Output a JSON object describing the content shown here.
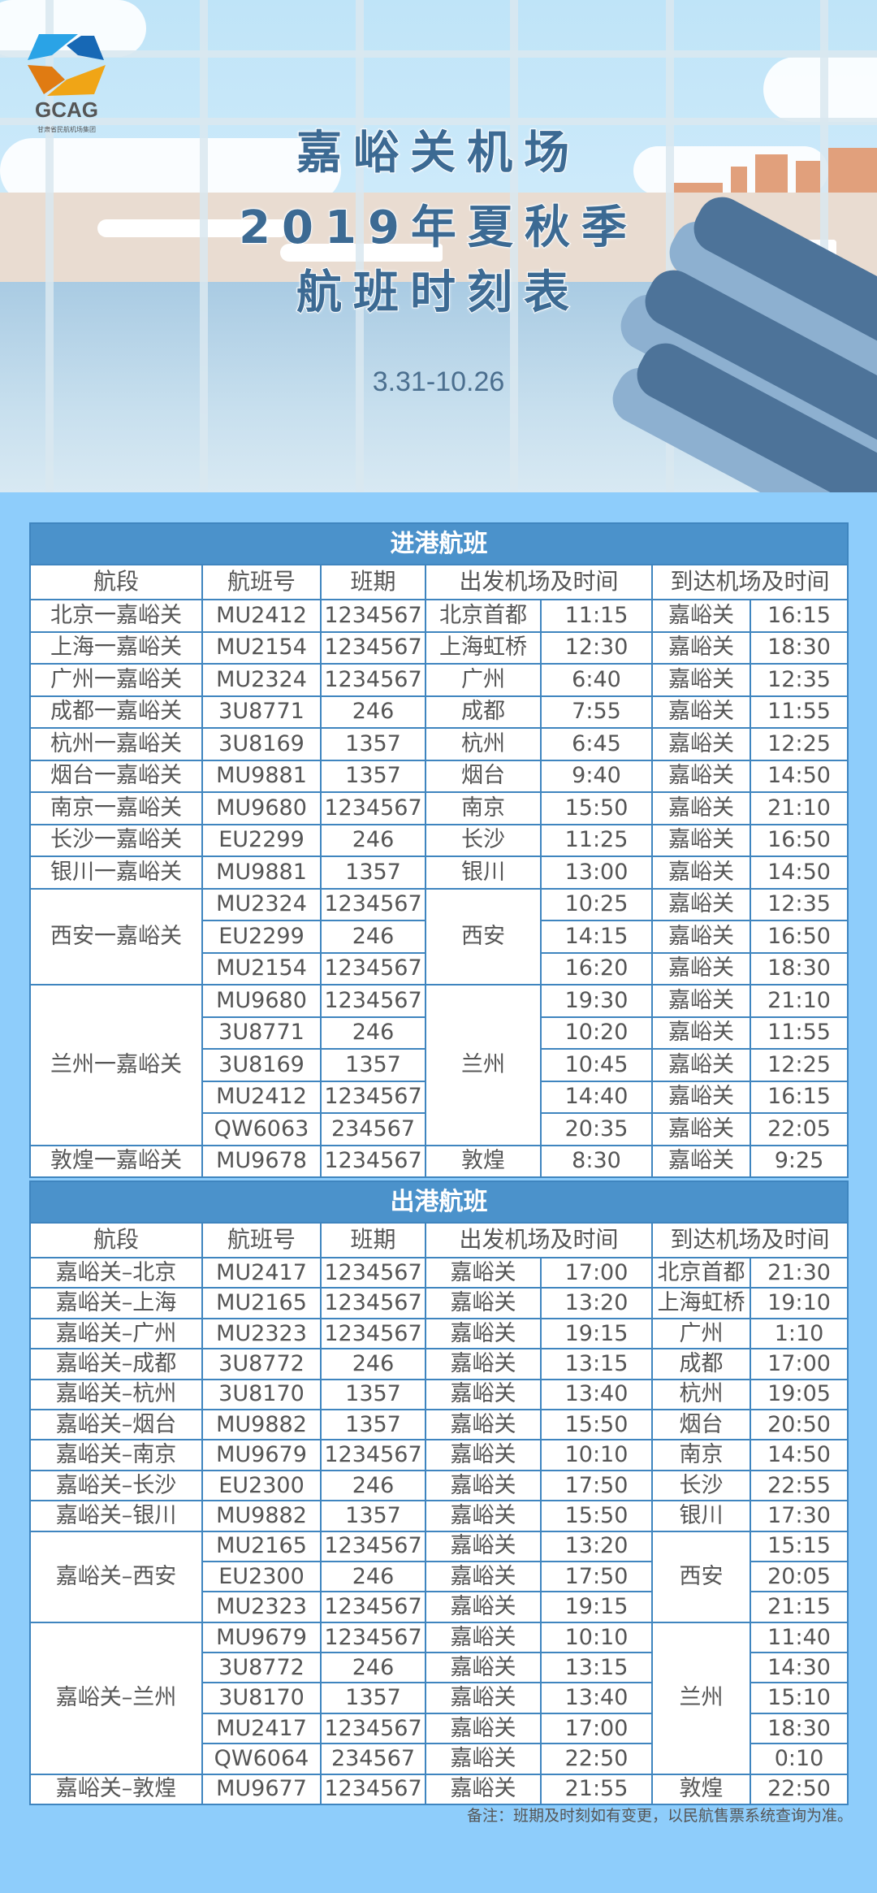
{
  "header": {
    "logo_text": "GCAG",
    "logo_subtitle": "甘肃省民航机场集团",
    "title_lines": [
      "嘉峪关机场",
      "2019年夏秋季",
      "航班时刻表"
    ],
    "date_range": "3.31-10.26"
  },
  "columns": {
    "segment": "航段",
    "flight": "航班号",
    "days": "班期",
    "departure": "出发机场及时间",
    "arrival": "到达机场及时间"
  },
  "arrivals": {
    "title": "进港航班",
    "groups": [
      {
        "segment": "北京一嘉峪关",
        "dep_airport": "北京首都",
        "flights": [
          {
            "flight": "MU2412",
            "days": "1234567",
            "dep_time": "11:15",
            "arr_airport": "嘉峪关",
            "arr_time": "16:15"
          }
        ]
      },
      {
        "segment": "上海一嘉峪关",
        "dep_airport": "上海虹桥",
        "flights": [
          {
            "flight": "MU2154",
            "days": "1234567",
            "dep_time": "12:30",
            "arr_airport": "嘉峪关",
            "arr_time": "18:30"
          }
        ]
      },
      {
        "segment": "广州一嘉峪关",
        "dep_airport": "广州",
        "flights": [
          {
            "flight": "MU2324",
            "days": "1234567",
            "dep_time": "6:40",
            "arr_airport": "嘉峪关",
            "arr_time": "12:35"
          }
        ]
      },
      {
        "segment": "成都一嘉峪关",
        "dep_airport": "成都",
        "flights": [
          {
            "flight": "3U8771",
            "days": "246",
            "dep_time": "7:55",
            "arr_airport": "嘉峪关",
            "arr_time": "11:55"
          }
        ]
      },
      {
        "segment": "杭州一嘉峪关",
        "dep_airport": "杭州",
        "flights": [
          {
            "flight": "3U8169",
            "days": "1357",
            "dep_time": "6:45",
            "arr_airport": "嘉峪关",
            "arr_time": "12:25"
          }
        ]
      },
      {
        "segment": "烟台一嘉峪关",
        "dep_airport": "烟台",
        "flights": [
          {
            "flight": "MU9881",
            "days": "1357",
            "dep_time": "9:40",
            "arr_airport": "嘉峪关",
            "arr_time": "14:50"
          }
        ]
      },
      {
        "segment": "南京一嘉峪关",
        "dep_airport": "南京",
        "flights": [
          {
            "flight": "MU9680",
            "days": "1234567",
            "dep_time": "15:50",
            "arr_airport": "嘉峪关",
            "arr_time": "21:10"
          }
        ]
      },
      {
        "segment": "长沙一嘉峪关",
        "dep_airport": "长沙",
        "flights": [
          {
            "flight": "EU2299",
            "days": "246",
            "dep_time": "11:25",
            "arr_airport": "嘉峪关",
            "arr_time": "16:50"
          }
        ]
      },
      {
        "segment": "银川一嘉峪关",
        "dep_airport": "银川",
        "flights": [
          {
            "flight": "MU9881",
            "days": "1357",
            "dep_time": "13:00",
            "arr_airport": "嘉峪关",
            "arr_time": "14:50"
          }
        ]
      },
      {
        "segment": "西安一嘉峪关",
        "dep_airport": "西安",
        "flights": [
          {
            "flight": "MU2324",
            "days": "1234567",
            "dep_time": "10:25",
            "arr_airport": "嘉峪关",
            "arr_time": "12:35"
          },
          {
            "flight": "EU2299",
            "days": "246",
            "dep_time": "14:15",
            "arr_airport": "嘉峪关",
            "arr_time": "16:50"
          },
          {
            "flight": "MU2154",
            "days": "1234567",
            "dep_time": "16:20",
            "arr_airport": "嘉峪关",
            "arr_time": "18:30"
          }
        ]
      },
      {
        "segment": "兰州一嘉峪关",
        "dep_airport": "兰州",
        "flights": [
          {
            "flight": "MU9680",
            "days": "1234567",
            "dep_time": "19:30",
            "arr_airport": "嘉峪关",
            "arr_time": "21:10"
          },
          {
            "flight": "3U8771",
            "days": "246",
            "dep_time": "10:20",
            "arr_airport": "嘉峪关",
            "arr_time": "11:55"
          },
          {
            "flight": "3U8169",
            "days": "1357",
            "dep_time": "10:45",
            "arr_airport": "嘉峪关",
            "arr_time": "12:25"
          },
          {
            "flight": "MU2412",
            "days": "1234567",
            "dep_time": "14:40",
            "arr_airport": "嘉峪关",
            "arr_time": "16:15"
          },
          {
            "flight": "QW6063",
            "days": "234567",
            "dep_time": "20:35",
            "arr_airport": "嘉峪关",
            "arr_time": "22:05"
          }
        ]
      },
      {
        "segment": "敦煌一嘉峪关",
        "dep_airport": "敦煌",
        "flights": [
          {
            "flight": "MU9678",
            "days": "1234567",
            "dep_time": "8:30",
            "arr_airport": "嘉峪关",
            "arr_time": "9:25"
          }
        ]
      }
    ]
  },
  "departures": {
    "title": "出港航班",
    "groups": [
      {
        "segment": "嘉峪关–北京",
        "arr_airport": "北京首都",
        "flights": [
          {
            "flight": "MU2417",
            "days": "1234567",
            "dep_airport": "嘉峪关",
            "dep_time": "17:00",
            "arr_time": "21:30"
          }
        ]
      },
      {
        "segment": "嘉峪关–上海",
        "arr_airport": "上海虹桥",
        "flights": [
          {
            "flight": "MU2165",
            "days": "1234567",
            "dep_airport": "嘉峪关",
            "dep_time": "13:20",
            "arr_time": "19:10"
          }
        ]
      },
      {
        "segment": "嘉峪关–广州",
        "arr_airport": "广州",
        "flights": [
          {
            "flight": "MU2323",
            "days": "1234567",
            "dep_airport": "嘉峪关",
            "dep_time": "19:15",
            "arr_time": "1:10"
          }
        ]
      },
      {
        "segment": "嘉峪关–成都",
        "arr_airport": "成都",
        "flights": [
          {
            "flight": "3U8772",
            "days": "246",
            "dep_airport": "嘉峪关",
            "dep_time": "13:15",
            "arr_time": "17:00"
          }
        ]
      },
      {
        "segment": "嘉峪关–杭州",
        "arr_airport": "杭州",
        "flights": [
          {
            "flight": "3U8170",
            "days": "1357",
            "dep_airport": "嘉峪关",
            "dep_time": "13:40",
            "arr_time": "19:05"
          }
        ]
      },
      {
        "segment": "嘉峪关–烟台",
        "arr_airport": "烟台",
        "flights": [
          {
            "flight": "MU9882",
            "days": "1357",
            "dep_airport": "嘉峪关",
            "dep_time": "15:50",
            "arr_time": "20:50"
          }
        ]
      },
      {
        "segment": "嘉峪关–南京",
        "arr_airport": "南京",
        "flights": [
          {
            "flight": "MU9679",
            "days": "1234567",
            "dep_airport": "嘉峪关",
            "dep_time": "10:10",
            "arr_time": "14:50"
          }
        ]
      },
      {
        "segment": "嘉峪关–长沙",
        "arr_airport": "长沙",
        "flights": [
          {
            "flight": "EU2300",
            "days": "246",
            "dep_airport": "嘉峪关",
            "dep_time": "17:50",
            "arr_time": "22:55"
          }
        ]
      },
      {
        "segment": "嘉峪关–银川",
        "arr_airport": "银川",
        "flights": [
          {
            "flight": "MU9882",
            "days": "1357",
            "dep_airport": "嘉峪关",
            "dep_time": "15:50",
            "arr_time": "17:30"
          }
        ]
      },
      {
        "segment": "嘉峪关–西安",
        "arr_airport": "西安",
        "flights": [
          {
            "flight": "MU2165",
            "days": "1234567",
            "dep_airport": "嘉峪关",
            "dep_time": "13:20",
            "arr_time": "15:15"
          },
          {
            "flight": "EU2300",
            "days": "246",
            "dep_airport": "嘉峪关",
            "dep_time": "17:50",
            "arr_time": "20:05"
          },
          {
            "flight": "MU2323",
            "days": "1234567",
            "dep_airport": "嘉峪关",
            "dep_time": "19:15",
            "arr_time": "21:15"
          }
        ]
      },
      {
        "segment": "嘉峪关–兰州",
        "arr_airport": "兰州",
        "flights": [
          {
            "flight": "MU9679",
            "days": "1234567",
            "dep_airport": "嘉峪关",
            "dep_time": "10:10",
            "arr_time": "11:40"
          },
          {
            "flight": "3U8772",
            "days": "246",
            "dep_airport": "嘉峪关",
            "dep_time": "13:15",
            "arr_time": "14:30"
          },
          {
            "flight": "3U8170",
            "days": "1357",
            "dep_airport": "嘉峪关",
            "dep_time": "13:40",
            "arr_time": "15:10"
          },
          {
            "flight": "MU2417",
            "days": "1234567",
            "dep_airport": "嘉峪关",
            "dep_time": "17:00",
            "arr_time": "18:30"
          },
          {
            "flight": "QW6064",
            "days": "234567",
            "dep_airport": "嘉峪关",
            "dep_time": "22:50",
            "arr_time": "0:10"
          }
        ]
      },
      {
        "segment": "嘉峪关–敦煌",
        "arr_airport": "敦煌",
        "flights": [
          {
            "flight": "MU9677",
            "days": "1234567",
            "dep_airport": "嘉峪关",
            "dep_time": "21:55",
            "arr_time": "22:50"
          }
        ]
      }
    ]
  },
  "footnote": "备注：班期及时刻如有变更，以民航售票系统查询为准。",
  "colors": {
    "background": "#8ecdfb",
    "table_header": "#4b92cb",
    "border": "#3f85bf",
    "title_text": "#3c6a93"
  }
}
